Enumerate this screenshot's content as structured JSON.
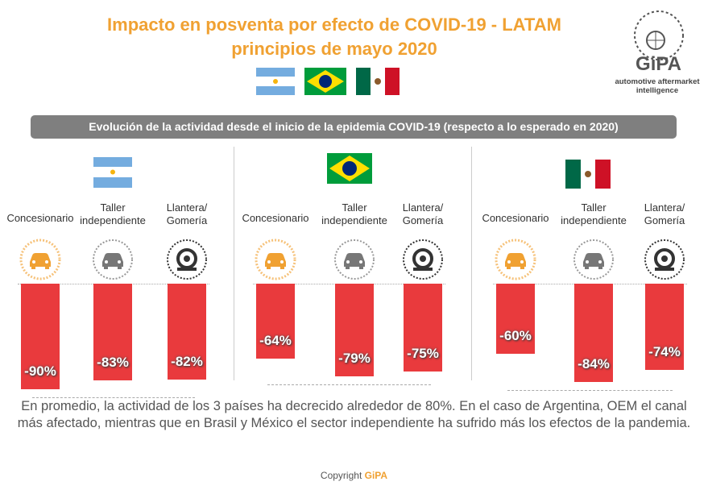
{
  "header": {
    "title": "Impacto en posventa por efecto de COVID-19 - LATAM",
    "subtitle": "principios de mayo 2020"
  },
  "logo": {
    "name": "GiPA",
    "tagline": "automotive aftermarket intelligence"
  },
  "banner": "Evolución de la actividad desde el inicio de la epidemia COVID-19 (respecto a lo esperado en 2020)",
  "chart_data": [
    {
      "type": "bar",
      "categories": [
        "Concesionario",
        "Taller independiente",
        "Llantera/ Gomería"
      ],
      "values": [
        -90,
        -83,
        -82
      ],
      "value_labels": [
        "-90%",
        "-83%",
        "-82%"
      ],
      "color": "#e93a3d"
    },
    {
      "type": "bar",
      "categories": [
        "Concesionario",
        "Taller independiente",
        "Llantera/ Gomería"
      ],
      "values": [
        -64,
        -79,
        -75
      ],
      "value_labels": [
        "-64%",
        "-79%",
        "-75%"
      ],
      "color": "#e93a3d"
    },
    {
      "type": "bar",
      "categories": [
        "Concesionario",
        "Taller independiente",
        "Llantera/ Gomería"
      ],
      "values": [
        -60,
        -84,
        -74
      ],
      "value_labels": [
        "-60%",
        "-84%",
        "-74%"
      ],
      "color": "#e93a3d"
    }
  ],
  "summary": "En promedio, la actividad de los 3 países ha decrecido alrededor de 80%. En el caso de Argentina, OEM el canal más afectado, mientras que en Brasil y México el sector independiente ha sufrido más los efectos de la pandemia.",
  "copyright": {
    "text": "Copyright",
    "brand": "GiPA"
  }
}
